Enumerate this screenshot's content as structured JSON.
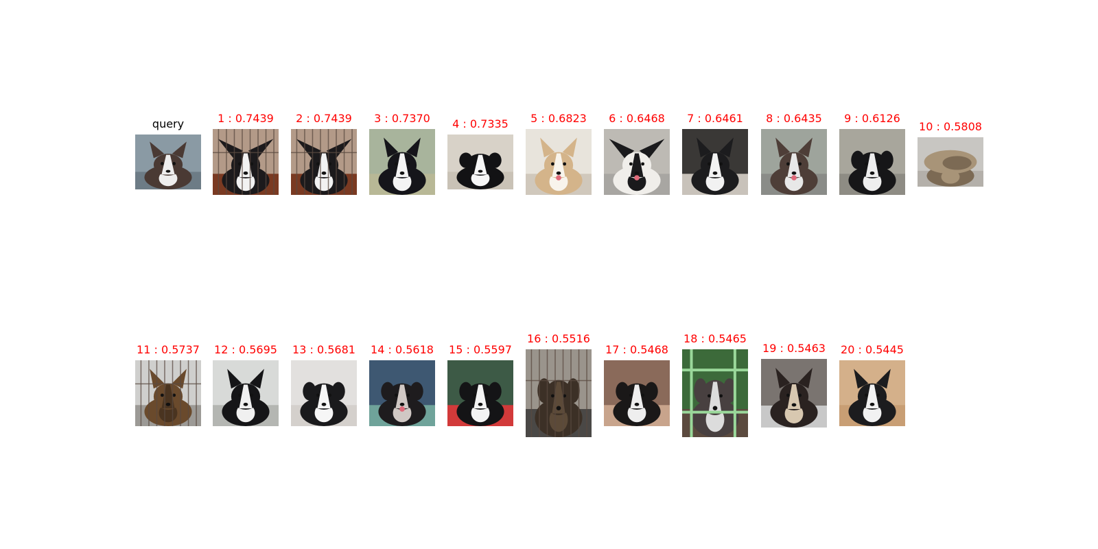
{
  "query": {
    "label": "query",
    "label_color": "#000000"
  },
  "result_label_color": "#ff0000",
  "results": [
    {
      "rank": 1,
      "score": "0.7439",
      "label": "1 : 0.7439"
    },
    {
      "rank": 2,
      "score": "0.7439",
      "label": "2 : 0.7439"
    },
    {
      "rank": 3,
      "score": "0.7370",
      "label": "3 : 0.7370"
    },
    {
      "rank": 4,
      "score": "0.7335",
      "label": "4 : 0.7335"
    },
    {
      "rank": 5,
      "score": "0.6823",
      "label": "5 : 0.6823"
    },
    {
      "rank": 6,
      "score": "0.6468",
      "label": "6 : 0.6468"
    },
    {
      "rank": 7,
      "score": "0.6461",
      "label": "7 : 0.6461"
    },
    {
      "rank": 8,
      "score": "0.6435",
      "label": "8 : 0.6435"
    },
    {
      "rank": 9,
      "score": "0.6126",
      "label": "9 : 0.6126"
    },
    {
      "rank": 10,
      "score": "0.5808",
      "label": "10 : 0.5808"
    },
    {
      "rank": 11,
      "score": "0.5737",
      "label": "11 : 0.5737"
    },
    {
      "rank": 12,
      "score": "0.5695",
      "label": "12 : 0.5695"
    },
    {
      "rank": 13,
      "score": "0.5681",
      "label": "13 : 0.5681"
    },
    {
      "rank": 14,
      "score": "0.5618",
      "label": "14 : 0.5618"
    },
    {
      "rank": 15,
      "score": "0.5597",
      "label": "15 : 0.5597"
    },
    {
      "rank": 16,
      "score": "0.5516",
      "label": "16 : 0.5516"
    },
    {
      "rank": 17,
      "score": "0.5468",
      "label": "17 : 0.5468"
    },
    {
      "rank": 18,
      "score": "0.5465",
      "label": "18 : 0.5465"
    },
    {
      "rank": 19,
      "score": "0.5463",
      "label": "19 : 0.5463"
    },
    {
      "rank": 20,
      "score": "0.5445",
      "label": "20 : 0.5445"
    }
  ]
}
